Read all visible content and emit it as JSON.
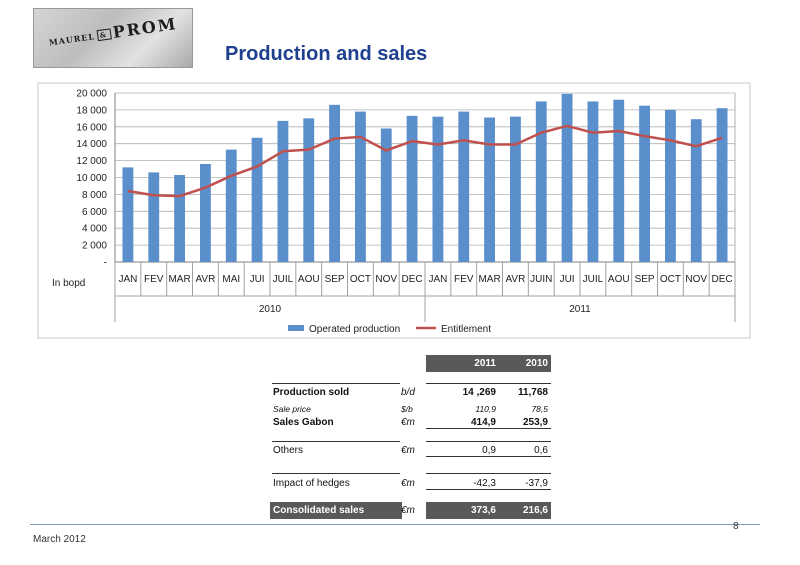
{
  "logo": {
    "maurel": "MAUREL",
    "amp": "&",
    "prom": "PROM"
  },
  "title": "Production and sales",
  "chart_data": {
    "type": "bar",
    "ylim": [
      0,
      20000
    ],
    "yticks": [
      "-",
      "2 000",
      "4 000",
      "6 000",
      "8 000",
      "10 000",
      "12 000",
      "14 000",
      "16 000",
      "18 000",
      "20 000"
    ],
    "ytick_values": [
      0,
      2000,
      4000,
      6000,
      8000,
      10000,
      12000,
      14000,
      16000,
      18000,
      20000
    ],
    "unit_label": "In bopd",
    "categories": [
      "JAN",
      "FEV",
      "MAR",
      "AVR",
      "MAI",
      "JUI",
      "JUIL",
      "AOU",
      "SEP",
      "OCT",
      "NOV",
      "DEC",
      "JAN",
      "FEV",
      "MAR",
      "AVR",
      "JUIN",
      "JUI",
      "JUIL",
      "AOU",
      "SEP",
      "OCT",
      "NOV",
      "DEC"
    ],
    "year_groups": [
      {
        "label": "2010",
        "count": 12
      },
      {
        "label": "2011",
        "count": 12
      }
    ],
    "series": [
      {
        "name": "Operated production",
        "kind": "bar",
        "color": "#5b8fcc",
        "values": [
          11200,
          10600,
          10300,
          11600,
          13300,
          14700,
          16700,
          17000,
          18600,
          17800,
          15800,
          17300,
          17200,
          17800,
          17100,
          17200,
          19000,
          19900,
          19000,
          19200,
          18500,
          18000,
          16900,
          18200
        ]
      },
      {
        "name": "Entitlement",
        "kind": "line",
        "color": "#c0504d",
        "values": [
          8400,
          7900,
          7800,
          8800,
          10200,
          11300,
          13100,
          13300,
          14600,
          14800,
          13200,
          14300,
          13900,
          14400,
          13900,
          13900,
          15300,
          16100,
          15300,
          15500,
          14900,
          14400,
          13700,
          14700
        ]
      }
    ],
    "grid": true,
    "legend": "bottom"
  },
  "table": {
    "columns": [
      "2011",
      "2010"
    ],
    "rows": [
      {
        "label": "Production sold",
        "unit": "b/d",
        "v2011": "14 ,269",
        "v2010": "11,768",
        "style": "bold"
      },
      {
        "label": "Sale price",
        "unit": "$/b",
        "v2011": "110,9",
        "v2010": "78,5",
        "style": "italic"
      },
      {
        "label": "Sales Gabon",
        "unit": "€m",
        "v2011": "414,9",
        "v2010": "253,9",
        "style": "strong"
      },
      {
        "label": "Others",
        "unit": "€m",
        "v2011": "0,9",
        "v2010": "0,6",
        "style": "normal"
      },
      {
        "label": "Impact of hedges",
        "unit": "€m",
        "v2011": "-42,3",
        "v2010": "-37,9",
        "style": "normal"
      },
      {
        "label": "Consolidated sales",
        "unit": "€m",
        "v2011": "373,6",
        "v2010": "216,6",
        "style": "total"
      }
    ]
  },
  "footer": {
    "date": "March 2012",
    "page": "8"
  }
}
